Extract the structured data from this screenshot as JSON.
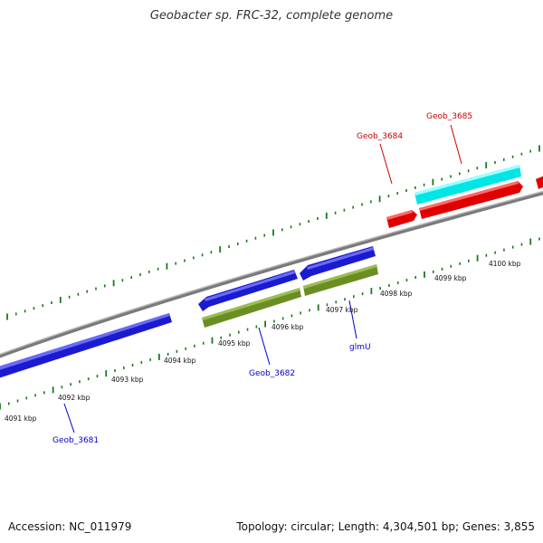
{
  "title": "Geobacter sp. FRC-32, complete genome",
  "footer": {
    "accession": "Accession: NC_011979",
    "summary": "Topology: circular; Length: 4,304,501 bp; Genes: 3,855"
  },
  "colors": {
    "backbone": "#7a7a7a",
    "ticks": "#1a7a1a",
    "blue_gene": "#1a1ad0",
    "red_gene": "#e00000",
    "cyan_gene": "#00e5e5",
    "olive_gene": "#6b8e23",
    "label_blue": "#0000cc",
    "label_red": "#cc0000"
  },
  "scale_labels": [
    "4091 kbp",
    "4092 kbp",
    "4093 kbp",
    "4094 kbp",
    "4095 kbp",
    "4096 kbp",
    "4097 kbp",
    "4098 kbp",
    "4099 kbp",
    "4100 kbp"
  ],
  "genes": [
    {
      "name": "Geob_3681",
      "color": "blue"
    },
    {
      "name": "Geob_3682",
      "color": "blue"
    },
    {
      "name": "glmU",
      "color": "blue"
    },
    {
      "name": "Geob_3684",
      "color": "red"
    },
    {
      "name": "Geob_3685",
      "color": "red"
    }
  ]
}
